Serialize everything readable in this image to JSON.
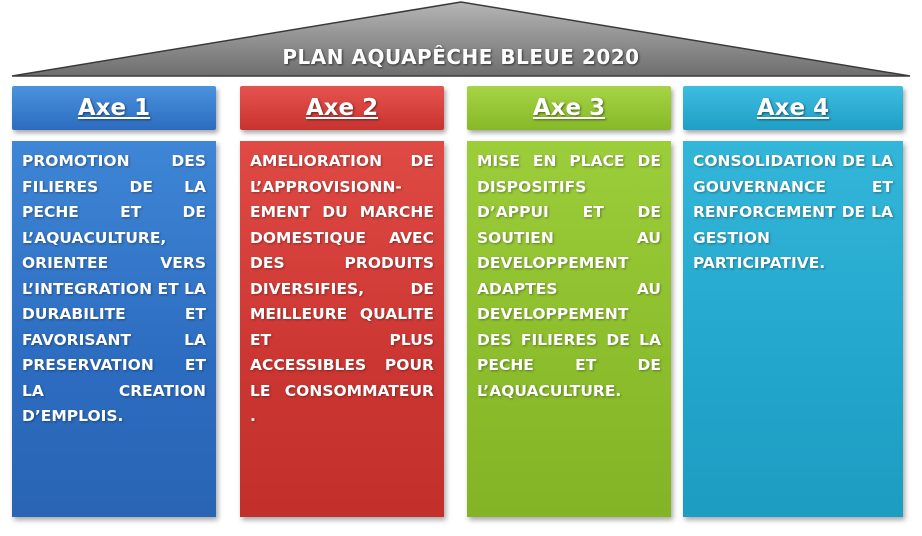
{
  "title": "PLAN AQUAPÊCHE BLEUE 2020",
  "colors": {
    "roof": "#7f7f7f",
    "axe1": "#2c6cc0",
    "axe2": "#cc3632",
    "axe3": "#8bbd2c",
    "axe4": "#22a6cb"
  },
  "axes": [
    {
      "label": "Axe 1",
      "text": "PROMOTION DES FILIERES DE LA PECHE ET DE L’AQUACULTURE, ORIENTEE VERS L’INTEGRATION ET LA DURABILITE ET FAVORISANT LA PRESERVATION ET LA CREATION D’EMPLOIS."
    },
    {
      "label": "Axe 2",
      "text": "AMELIORATION DE L’APPROVISIONN-EMENT DU MARCHE DOMESTIQUE AVEC DES PRODUITS DIVERSIFIES, DE MEILLEURE QUALITE ET PLUS ACCESSIBLES POUR LE CONSOMMATEUR ."
    },
    {
      "label": "Axe 3",
      "text": "MISE EN PLACE DE DISPOSITIFS D’APPUI ET DE SOUTIEN AU DEVELOPPEMENT ADAPTES AU DEVELOPPEMENT DES FILIERES DE LA PECHE ET DE L’AQUACULTURE."
    },
    {
      "label": "Axe 4",
      "text": "CONSOLIDATION DE LA GOUVERNANCE ET RENFORCEMENT DE LA GESTION PARTICIPATIVE."
    }
  ]
}
